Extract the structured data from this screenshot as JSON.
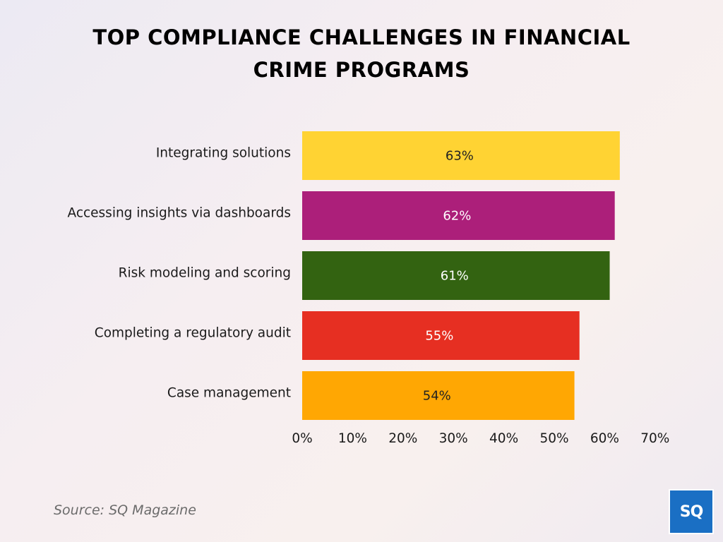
{
  "title_lines": [
    "TOP COMPLIANCE CHALLENGES IN FINANCIAL",
    "CRIME PROGRAMS"
  ],
  "source": "Source: SQ Magazine",
  "logo_text": "SQ",
  "chart_data": {
    "type": "bar",
    "orientation": "horizontal",
    "title": "TOP COMPLIANCE CHALLENGES IN FINANCIAL CRIME PROGRAMS",
    "categories": [
      "Integrating solutions",
      "Accessing insights via dashboards",
      "Risk modeling and scoring",
      "Completing a regulatory audit",
      "Case management"
    ],
    "values": [
      63,
      62,
      61,
      55,
      54
    ],
    "value_labels": [
      "63%",
      "62%",
      "61%",
      "55%",
      "54%"
    ],
    "bar_colors": [
      "#ffd333",
      "#ac1f7a",
      "#336311",
      "#e62f22",
      "#ffa703"
    ],
    "label_colors": [
      "#222222",
      "#ffffff",
      "#ffffff",
      "#ffffff",
      "#222222"
    ],
    "xlim": [
      0,
      70
    ],
    "xticks": [
      0,
      10,
      20,
      30,
      40,
      50,
      60,
      70
    ],
    "xtick_labels": [
      "0%",
      "10%",
      "20%",
      "30%",
      "40%",
      "50%",
      "60%",
      "70%"
    ],
    "xlabel": "",
    "ylabel": "",
    "grid": false,
    "legend": "none"
  }
}
